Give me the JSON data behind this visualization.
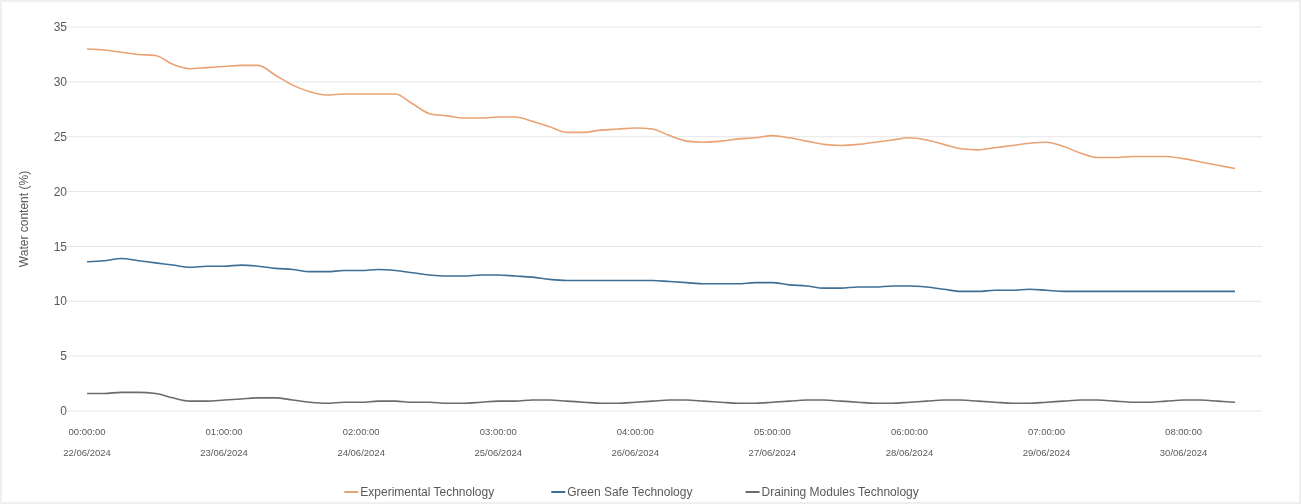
{
  "chart_data": {
    "type": "line",
    "ylabel": "Water content (%)",
    "categories": [
      "00:00:00\n22/06/2024",
      null,
      null,
      null,
      null,
      null,
      null,
      null,
      "01:00:00\n23/06/2024",
      null,
      null,
      null,
      null,
      null,
      null,
      null,
      "02:00:00\n24/06/2024",
      null,
      null,
      null,
      null,
      null,
      null,
      null,
      "03:00:00\n25/06/2024",
      null,
      null,
      null,
      null,
      null,
      null,
      null,
      "04:00:00\n26/06/2024",
      null,
      null,
      null,
      null,
      null,
      null,
      null,
      "05:00:00\n27/06/2024",
      null,
      null,
      null,
      null,
      null,
      null,
      null,
      "06:00:00\n28/06/2024",
      null,
      null,
      null,
      null,
      null,
      null,
      null,
      "07:00:00\n29/06/2024",
      null,
      null,
      null,
      null,
      null,
      null,
      null,
      "08:00:00\n30/06/2024",
      null,
      null,
      null
    ],
    "series": [
      {
        "name": "Experimental Technology",
        "color": "#e9a273",
        "values": [
          33.0,
          32.9,
          32.7,
          32.5,
          32.4,
          31.6,
          31.2,
          31.3,
          31.4,
          31.5,
          31.5,
          30.6,
          29.7,
          29.1,
          28.8,
          28.9,
          28.9,
          28.9,
          28.9,
          28.0,
          27.1,
          26.9,
          26.7,
          26.7,
          26.8,
          26.8,
          26.4,
          25.9,
          25.4,
          25.4,
          25.6,
          25.7,
          25.8,
          25.7,
          25.1,
          24.6,
          24.5,
          24.6,
          24.8,
          24.9,
          25.1,
          24.9,
          24.6,
          24.3,
          24.2,
          24.3,
          24.5,
          24.7,
          24.9,
          24.7,
          24.3,
          23.9,
          23.8,
          24.0,
          24.2,
          24.4,
          24.5,
          24.1,
          23.5,
          23.1,
          23.1,
          23.2,
          23.2,
          23.2,
          23.0,
          22.7,
          22.4,
          22.1
        ]
      },
      {
        "name": "Green Safe Technology",
        "color": "#3e6f96",
        "values": [
          13.6,
          13.7,
          13.9,
          13.7,
          13.5,
          13.3,
          13.1,
          13.2,
          13.2,
          13.3,
          13.2,
          13.0,
          12.9,
          12.7,
          12.7,
          12.8,
          12.8,
          12.9,
          12.8,
          12.6,
          12.4,
          12.3,
          12.3,
          12.4,
          12.4,
          12.3,
          12.2,
          12.0,
          11.9,
          11.9,
          11.9,
          11.9,
          11.9,
          11.9,
          11.8,
          11.7,
          11.6,
          11.6,
          11.6,
          11.7,
          11.7,
          11.5,
          11.4,
          11.2,
          11.2,
          11.3,
          11.3,
          11.4,
          11.4,
          11.3,
          11.1,
          10.9,
          10.9,
          11.0,
          11.0,
          11.1,
          11.0,
          10.9,
          10.9,
          10.9,
          10.9,
          10.9,
          10.9,
          10.9,
          10.9,
          10.9,
          10.9,
          10.9
        ]
      },
      {
        "name": "Draining Modules Technology",
        "color": "#6b6b6b",
        "values": [
          1.6,
          1.6,
          1.7,
          1.7,
          1.6,
          1.2,
          0.9,
          0.9,
          1.0,
          1.1,
          1.2,
          1.2,
          1.0,
          0.8,
          0.7,
          0.8,
          0.8,
          0.9,
          0.9,
          0.8,
          0.8,
          0.7,
          0.7,
          0.8,
          0.9,
          0.9,
          1.0,
          1.0,
          0.9,
          0.8,
          0.7,
          0.7,
          0.8,
          0.9,
          1.0,
          1.0,
          0.9,
          0.8,
          0.7,
          0.7,
          0.8,
          0.9,
          1.0,
          1.0,
          0.9,
          0.8,
          0.7,
          0.7,
          0.8,
          0.9,
          1.0,
          1.0,
          0.9,
          0.8,
          0.7,
          0.7,
          0.8,
          0.9,
          1.0,
          1.0,
          0.9,
          0.8,
          0.8,
          0.9,
          1.0,
          1.0,
          0.9,
          0.8
        ]
      }
    ],
    "ylim": [
      0,
      35
    ],
    "yticks": [
      0,
      5,
      10,
      15,
      20,
      25,
      30,
      35
    ],
    "grid": "y",
    "legend": "bottom"
  }
}
